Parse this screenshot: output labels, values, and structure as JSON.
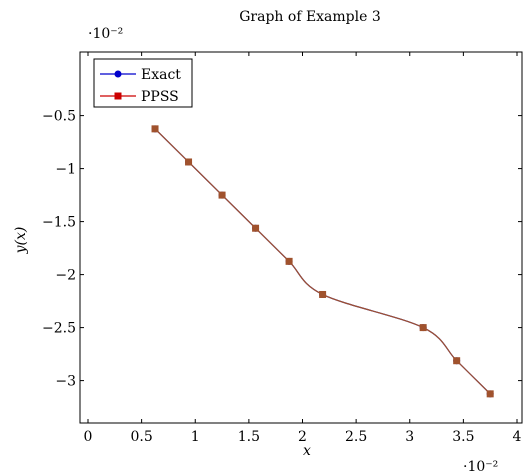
{
  "chart_data": {
    "type": "line",
    "title": "Graph of Example 3",
    "xlabel": "x",
    "ylabel": "y(x)",
    "x_scale_label": "·10⁻²",
    "y_scale_label": "·10⁻²",
    "xlim": [
      0,
      4
    ],
    "ylim": [
      -3.4,
      0.1
    ],
    "xticks": [
      0,
      0.5,
      1,
      1.5,
      2,
      2.5,
      3,
      3.5,
      4
    ],
    "xtick_labels": [
      "0",
      "0.5",
      "1",
      "1.5",
      "2",
      "2.5",
      "3",
      "3.5",
      "4"
    ],
    "yticks": [
      -0.5,
      -1,
      -1.5,
      -2,
      -2.5,
      -3
    ],
    "ytick_labels": [
      "−0.5",
      "−1",
      "−1.5",
      "−2",
      "−2.5",
      "−3"
    ],
    "grid": false,
    "legend_position": "top-left",
    "x": [
      0.625,
      0.9375,
      1.25,
      1.5625,
      1.875,
      2.1875,
      3.125,
      3.4375,
      3.75
    ],
    "series": [
      {
        "name": "Exact",
        "marker": "circle",
        "color": "#0000cc",
        "y": [
          -0.625,
          -0.9375,
          -1.25,
          -1.5625,
          -1.875,
          -2.1875,
          -2.5,
          -2.8125,
          -3.125
        ]
      },
      {
        "name": "PPSS",
        "marker": "square",
        "color": "#cc0000",
        "y": [
          -0.625,
          -0.9375,
          -1.25,
          -1.5625,
          -1.875,
          -2.1875,
          -2.5,
          -2.8125,
          -3.125
        ]
      }
    ],
    "overlap_color": "#a0522d"
  }
}
